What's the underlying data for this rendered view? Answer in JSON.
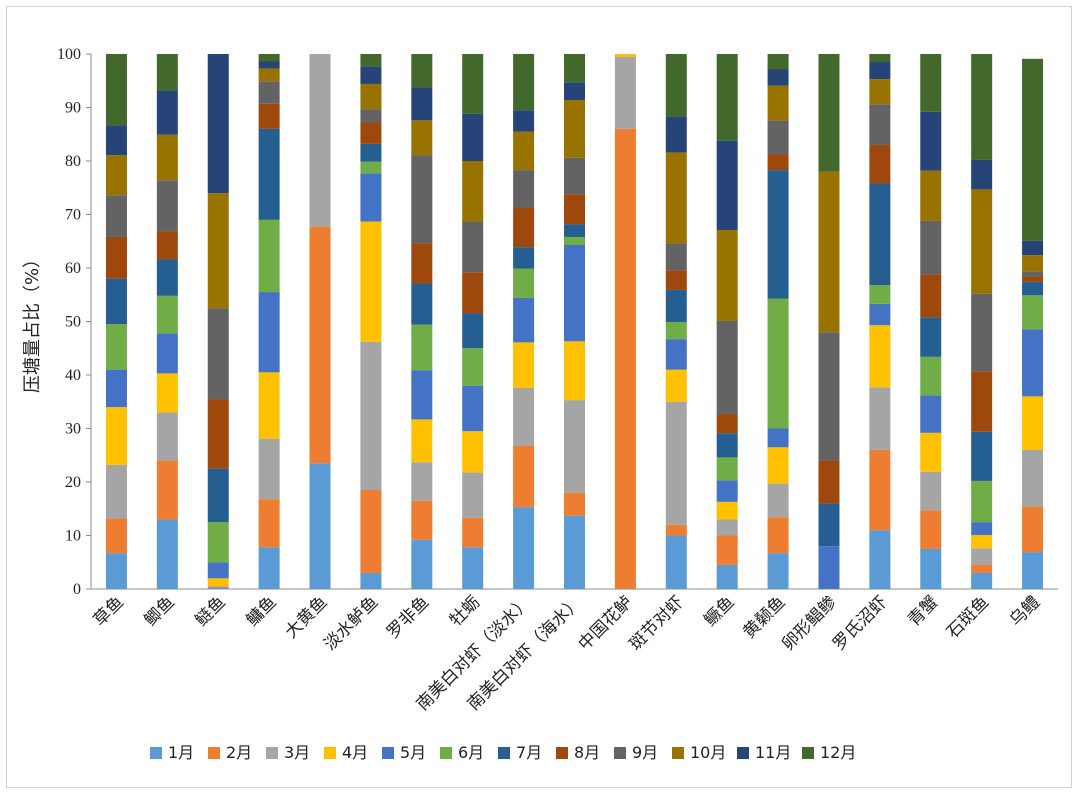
{
  "chart_data": {
    "type": "bar",
    "stacked": true,
    "ylabel": "压塘量占比（%）",
    "ylim": [
      0,
      100
    ],
    "yticks": [
      0,
      10,
      20,
      30,
      40,
      50,
      60,
      70,
      80,
      90,
      100
    ],
    "grid": false,
    "legend_position": "bottom",
    "categories": [
      "草鱼",
      "鲫鱼",
      "鲢鱼",
      "鳙鱼",
      "大黄鱼",
      "淡水鲈鱼",
      "罗非鱼",
      "牡蛎",
      "南美白对虾（淡水）",
      "南美白对虾（海水）",
      "中国花鲈",
      "斑节对虾",
      "鳜鱼",
      "黄颡鱼",
      "卵形鲳鲹",
      "罗氏沼虾",
      "青蟹",
      "石斑鱼",
      "乌鳢"
    ],
    "series": [
      {
        "name": "1月",
        "color": "#5b9bd5",
        "values": [
          6.7,
          13.0,
          0.3,
          7.8,
          23.5,
          3.0,
          9.2,
          7.8,
          15.3,
          13.7,
          0.0,
          10.0,
          4.5,
          6.7,
          0.0,
          11.0,
          7.5,
          3.0,
          6.9
        ]
      },
      {
        "name": "2月",
        "color": "#ed7d31",
        "values": [
          6.5,
          11.0,
          0.2,
          9.0,
          44.2,
          15.5,
          7.3,
          5.5,
          11.5,
          4.3,
          86.0,
          2.0,
          5.5,
          6.7,
          0.0,
          15.0,
          7.2,
          1.6,
          8.5
        ]
      },
      {
        "name": "3月",
        "color": "#a5a5a5",
        "values": [
          10.0,
          9.0,
          0.0,
          11.3,
          32.3,
          27.7,
          7.2,
          8.5,
          10.8,
          17.3,
          13.5,
          23.0,
          3.0,
          6.3,
          0.0,
          11.7,
          7.2,
          3.0,
          10.6
        ]
      },
      {
        "name": "4月",
        "color": "#ffc000",
        "values": [
          10.8,
          7.3,
          1.5,
          12.4,
          0.0,
          22.5,
          8.0,
          7.7,
          8.5,
          11.0,
          0.5,
          6.0,
          3.3,
          6.8,
          0.0,
          11.6,
          7.3,
          2.5,
          10.0
        ]
      },
      {
        "name": "5月",
        "color": "#4472c4",
        "values": [
          7.0,
          7.5,
          3.0,
          15.0,
          0.0,
          9.0,
          9.2,
          8.5,
          8.3,
          18.0,
          0.0,
          5.7,
          4.0,
          3.5,
          8.0,
          4.0,
          7.0,
          2.4,
          12.5
        ]
      },
      {
        "name": "6月",
        "color": "#70ad47",
        "values": [
          8.5,
          7.0,
          7.5,
          13.5,
          0.0,
          2.2,
          8.5,
          7.0,
          5.5,
          1.5,
          0.0,
          3.2,
          4.3,
          24.3,
          0.0,
          3.5,
          7.2,
          7.7,
          6.4
        ]
      },
      {
        "name": "7月",
        "color": "#255e91",
        "values": [
          8.5,
          6.8,
          10.0,
          17.0,
          0.0,
          3.3,
          7.7,
          6.5,
          4.0,
          2.4,
          0.0,
          6.0,
          4.5,
          24.0,
          8.0,
          19.0,
          7.4,
          9.2,
          2.5
        ]
      },
      {
        "name": "8月",
        "color": "#9e480e",
        "values": [
          7.8,
          5.3,
          13.0,
          4.7,
          0.0,
          4.0,
          7.5,
          7.7,
          7.4,
          5.6,
          0.0,
          3.7,
          3.6,
          3.0,
          8.0,
          7.2,
          8.0,
          11.3,
          1.0
        ]
      },
      {
        "name": "9月",
        "color": "#636363",
        "values": [
          7.8,
          9.5,
          17.0,
          4.2,
          0.0,
          2.5,
          16.5,
          9.5,
          7.0,
          6.8,
          0.0,
          5.0,
          17.4,
          6.3,
          24.0,
          7.6,
          10.0,
          14.5,
          1.0
        ]
      },
      {
        "name": "10月",
        "color": "#997300",
        "values": [
          7.5,
          8.5,
          21.5,
          2.4,
          0.0,
          4.7,
          6.5,
          11.3,
          7.2,
          10.8,
          0.0,
          17.0,
          17.0,
          6.5,
          30.0,
          4.7,
          9.4,
          19.5,
          3.0
        ]
      },
      {
        "name": "11月",
        "color": "#264478",
        "values": [
          5.6,
          8.3,
          26.3,
          1.3,
          0.0,
          3.3,
          6.2,
          8.8,
          4.0,
          3.3,
          0.0,
          6.7,
          16.7,
          3.0,
          0.0,
          3.2,
          11.0,
          5.5,
          2.7
        ]
      },
      {
        "name": "12月",
        "color": "#43682b",
        "values": [
          13.3,
          6.8,
          0.0,
          1.4,
          0.0,
          2.3,
          6.2,
          11.2,
          10.5,
          5.3,
          0.0,
          11.7,
          16.5,
          2.9,
          22.0,
          1.5,
          10.8,
          20.3,
          34.0
        ]
      }
    ]
  }
}
